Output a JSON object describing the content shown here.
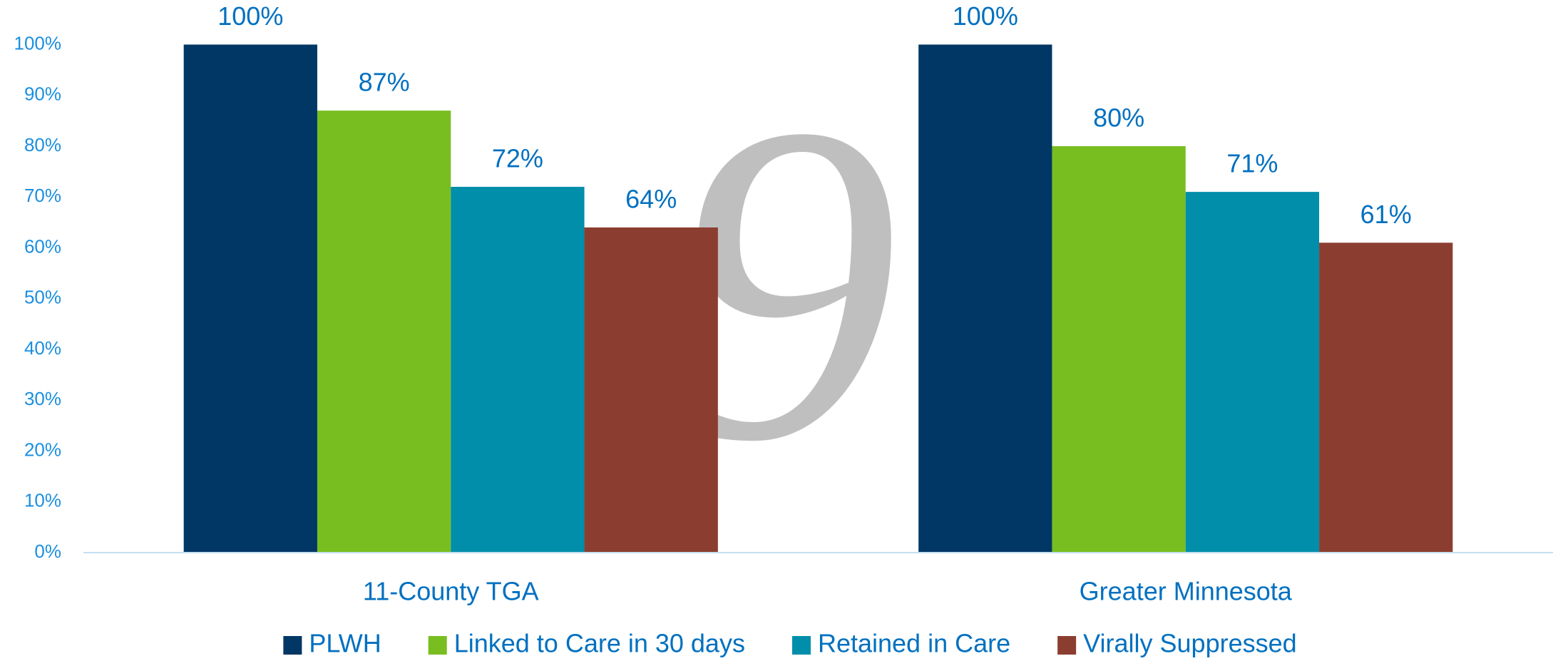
{
  "chart_data": {
    "type": "bar",
    "annotation": "9",
    "categories": [
      "11-County TGA",
      "Greater Minnesota"
    ],
    "series": [
      {
        "name": "PLWH",
        "color": "#003764",
        "values": [
          100,
          100
        ],
        "value_labels": [
          "100%",
          "100%"
        ]
      },
      {
        "name": "Linked to Care in 30 days",
        "color": "#78be20",
        "values": [
          87,
          80
        ],
        "value_labels": [
          "87%",
          "80%"
        ]
      },
      {
        "name": "Retained in Care",
        "color": "#008eaa",
        "values": [
          72,
          71
        ],
        "value_labels": [
          "72%",
          "71%"
        ]
      },
      {
        "name": "Virally Suppressed",
        "color": "#8b3e2f",
        "values": [
          64,
          61
        ],
        "value_labels": [
          "64%",
          "61%"
        ]
      }
    ],
    "ylim": [
      0,
      100
    ],
    "yticks": [
      {
        "value": 0,
        "label": "0%"
      },
      {
        "value": 10,
        "label": "10%"
      },
      {
        "value": 20,
        "label": "20%"
      },
      {
        "value": 30,
        "label": "30%"
      },
      {
        "value": 40,
        "label": "40%"
      },
      {
        "value": 50,
        "label": "50%"
      },
      {
        "value": 60,
        "label": "60%"
      },
      {
        "value": 70,
        "label": "70%"
      },
      {
        "value": 80,
        "label": "80%"
      },
      {
        "value": 90,
        "label": "90%"
      },
      {
        "value": 100,
        "label": "100%"
      }
    ],
    "grid": false,
    "legend": "bottom"
  }
}
